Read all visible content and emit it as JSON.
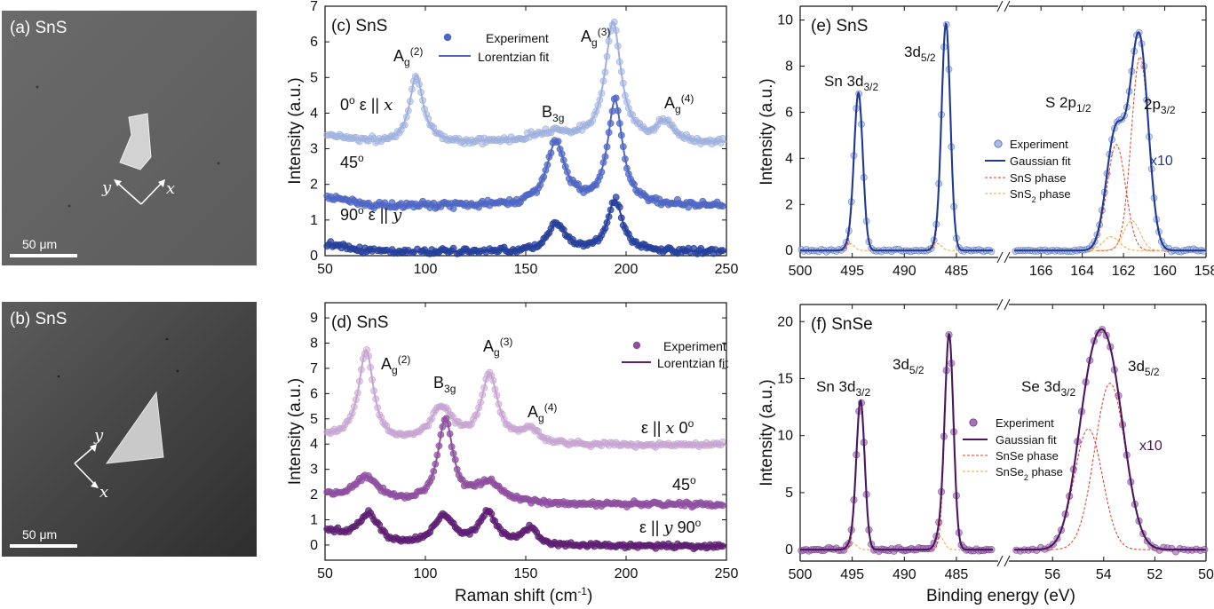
{
  "figure": {
    "x_label_raman": "Raman shift (cm",
    "x_label_raman_sup": "-1",
    "x_label_raman_end": ")",
    "x_label_xps": "Binding energy (eV)",
    "y_label": "Intensity (a.u.)"
  },
  "micrographs": [
    {
      "label": "(a) SnS",
      "scale_bar": "50 μm",
      "axis1": "y",
      "axis2": "x"
    },
    {
      "label": "(b) SnS",
      "scale_bar": "50 μm",
      "axis1": "y",
      "axis2": "x"
    }
  ],
  "colors": {
    "c_light": "#9fb0df",
    "c_mid": "#4f67c4",
    "c_dark": "#253f9c",
    "d_light": "#c7a4d2",
    "d_mid": "#8f4fa0",
    "d_dark": "#5e1f73",
    "e_fit": "#1f3a93",
    "e_pts": "#a9bde6",
    "f_fit": "#4b1560",
    "f_pts": "#a774b8",
    "phase1": "#e43a22",
    "phase2": "#f4a23c"
  },
  "chart_data": [
    {
      "panel": "c",
      "type": "line",
      "title": "(c) SnS",
      "xlabel": "",
      "ylabel": "Intensity (a.u.)",
      "xlim": [
        50,
        250
      ],
      "ylim": [
        0,
        7
      ],
      "xticks": [
        50,
        100,
        150,
        200,
        250
      ],
      "yticks": [
        0,
        1,
        2,
        3,
        4,
        5,
        6,
        7
      ],
      "legend": [
        "Experiment",
        "Lorentzian fit"
      ],
      "series": [
        {
          "name": "0o ε || x",
          "offset": 3.15,
          "peaks": [
            [
              95.5,
              1.9,
              4.0
            ],
            [
              163,
              0.3,
              12
            ],
            [
              193.5,
              3.35,
              4.8
            ],
            [
              219,
              0.55,
              5
            ]
          ]
        },
        {
          "name": "45o",
          "offset": 1.4,
          "peaks": [
            [
              165,
              1.75,
              5.5
            ],
            [
              194.5,
              2.9,
              4.5
            ]
          ]
        },
        {
          "name": "90o ε || y",
          "offset": 0.1,
          "peaks": [
            [
              165.5,
              0.75,
              6
            ],
            [
              194.5,
              1.45,
              4.5
            ]
          ]
        }
      ],
      "annotations": [
        "A",
        "g",
        "(2)",
        "B",
        "3g",
        "A",
        "g",
        "(3)",
        "A",
        "g",
        "(4)"
      ],
      "curve_labels": [
        "0",
        "o",
        "ε || ",
        "x",
        "45",
        "o",
        "90",
        "o",
        "ε || ",
        "y"
      ]
    },
    {
      "panel": "d",
      "type": "line",
      "title": "(d) SnS",
      "xlabel": "Raman shift (cm-1)",
      "ylabel": "Intensity (a.u.)",
      "xlim": [
        50,
        250
      ],
      "ylim": [
        -0.6,
        9.6
      ],
      "xticks": [
        50,
        100,
        150,
        200,
        250
      ],
      "yticks": [
        0,
        1,
        2,
        3,
        4,
        5,
        6,
        7,
        8,
        9
      ],
      "legend": [
        "Experiment",
        "Lorentzian fit"
      ],
      "series": [
        {
          "name": "ε || x 0o",
          "offset": 3.95,
          "peaks": [
            [
              70.5,
              3.65,
              4.5
            ],
            [
              108,
              1.4,
              7
            ],
            [
              132,
              2.7,
              5
            ],
            [
              152,
              0.55,
              5
            ]
          ]
        },
        {
          "name": "45o",
          "offset": 1.6,
          "peaks": [
            [
              71,
              1.0,
              8
            ],
            [
              110,
              3.3,
              4.5
            ],
            [
              132,
              0.8,
              8
            ]
          ]
        },
        {
          "name": "ε || y 90o",
          "offset": -0.05,
          "peaks": [
            [
              72,
              1.2,
              6
            ],
            [
              109,
              1.15,
              6
            ],
            [
              131,
              1.3,
              5
            ],
            [
              152,
              0.65,
              5
            ]
          ]
        }
      ],
      "annotations": [
        "A",
        "g",
        "(2)",
        "B",
        "3g",
        "A",
        "g",
        "(3)",
        "A",
        "g",
        "(4)"
      ],
      "curve_labels": [
        "ε || ",
        "x",
        "0",
        "o",
        "45",
        "o",
        "ε || ",
        "y",
        "90",
        "o"
      ]
    },
    {
      "panel": "e",
      "type": "line",
      "title": "(e) SnS",
      "xlabel": "",
      "ylabel": "Intensity (a.u.)",
      "xlim_left": [
        500,
        481.5
      ],
      "xlim_right": [
        167.3,
        158
      ],
      "ylim": [
        -0.3,
        10.6
      ],
      "xticks_left": [
        500,
        495,
        490,
        485
      ],
      "xticks_right": [
        166,
        164,
        162,
        160,
        158
      ],
      "yticks": [
        0,
        2,
        4,
        6,
        8,
        10
      ],
      "legend": [
        "Experiment",
        "Gaussian fit",
        "SnS phase",
        "SnS2 phase"
      ],
      "scale_note": "x10",
      "peaks_left": [
        [
          494.4,
          6.8,
          0.42,
          "SnS phase"
        ],
        [
          495.2,
          0.3,
          0.4,
          "SnS2 phase"
        ],
        [
          486.0,
          9.8,
          0.42,
          "SnS phase"
        ],
        [
          486.8,
          0.3,
          0.4,
          "SnS2 phase"
        ]
      ],
      "peaks_right": [
        [
          162.35,
          4.6,
          0.45,
          "SnS phase"
        ],
        [
          161.2,
          8.4,
          0.42,
          "SnS phase"
        ],
        [
          162.6,
          0.6,
          0.4,
          "SnS2 phase"
        ],
        [
          161.6,
          1.3,
          0.4,
          "SnS2 phase"
        ]
      ],
      "annotations": [
        "Sn 3d",
        "3/2",
        "3d",
        "5/2",
        "S 2p",
        "1/2",
        "2p",
        "3/2"
      ]
    },
    {
      "panel": "f",
      "type": "line",
      "title": "(f) SnSe",
      "xlabel": "Binding energy (eV)",
      "ylabel": "Intensity (a.u.)",
      "xlim_left": [
        500,
        481.5
      ],
      "xlim_right": [
        57.5,
        50
      ],
      "ylim": [
        -1,
        21.5
      ],
      "xticks_left": [
        500,
        495,
        490,
        485
      ],
      "xticks_right": [
        56,
        54,
        52,
        50
      ],
      "yticks": [
        0,
        5,
        10,
        15,
        20
      ],
      "legend": [
        "Experiment",
        "Gaussian fit",
        "SnSe phase",
        "SnSe2 phase"
      ],
      "scale_note": "x10",
      "peaks_left": [
        [
          494.2,
          13.0,
          0.4,
          "SnSe phase"
        ],
        [
          495.0,
          0.6,
          0.4,
          "SnSe2 phase"
        ],
        [
          485.7,
          18.8,
          0.42,
          "SnSe phase"
        ],
        [
          486.6,
          1.2,
          0.4,
          "SnSe2 phase"
        ]
      ],
      "peaks_right": [
        [
          54.6,
          10.6,
          0.55,
          "SnSe phase"
        ],
        [
          53.75,
          14.6,
          0.6,
          "SnSe phase"
        ]
      ],
      "annotations": [
        "Sn 3d",
        "3/2",
        "3d",
        "5/2",
        "Se 3d",
        "3/2",
        "3d",
        "5/2"
      ]
    }
  ]
}
